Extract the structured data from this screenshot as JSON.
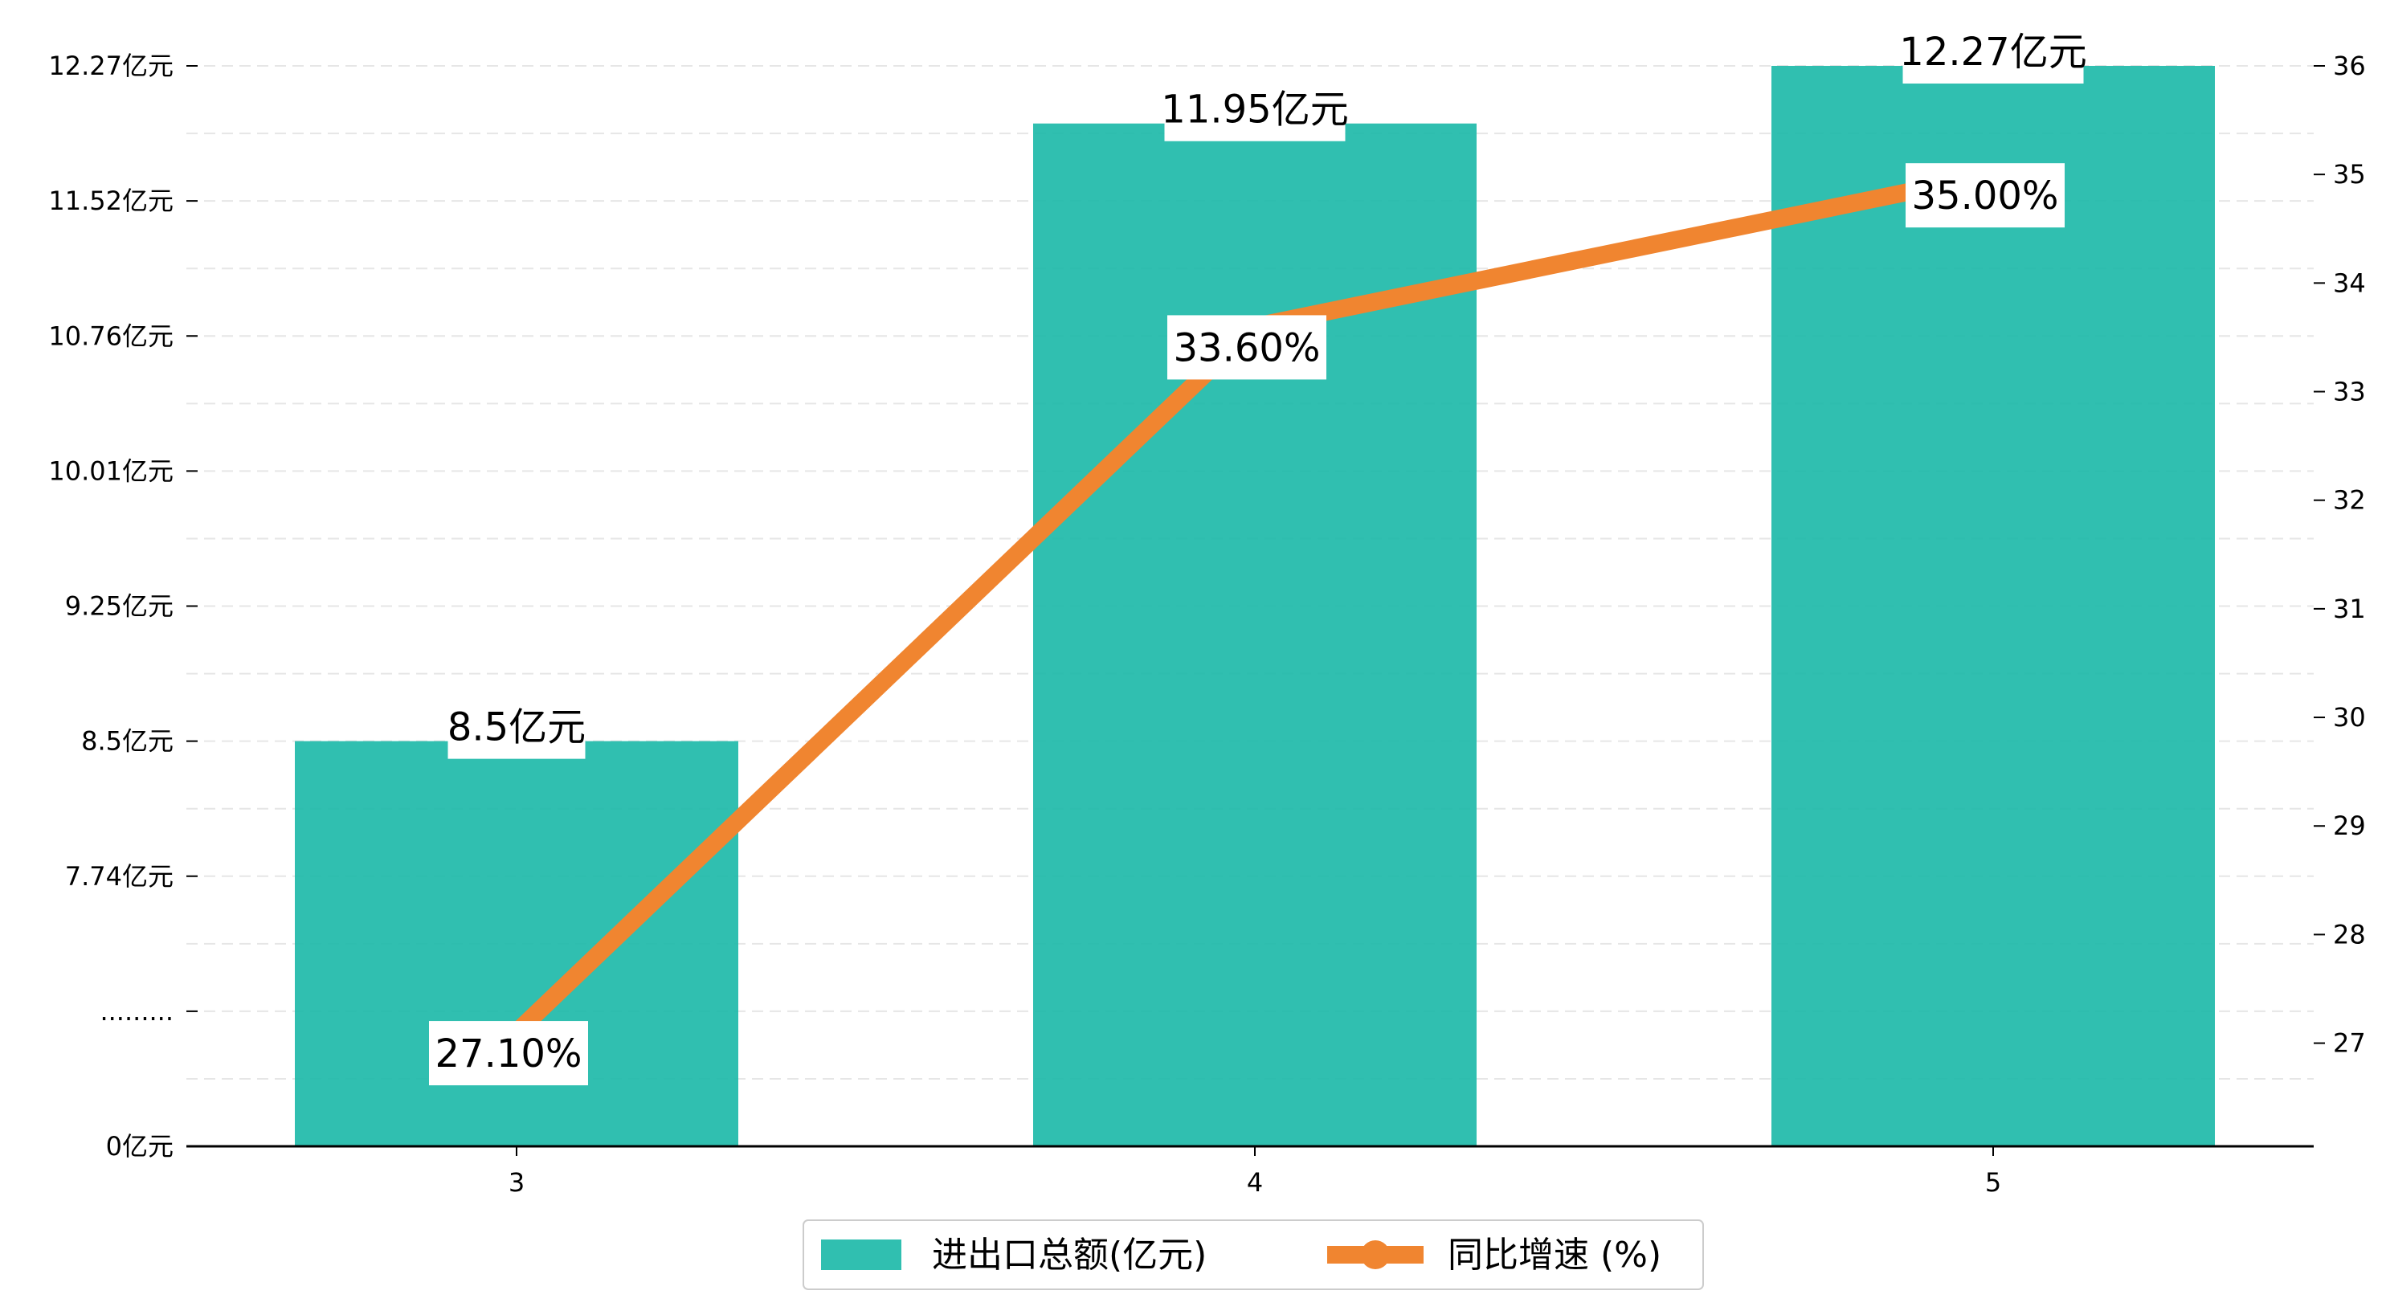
{
  "chart_data": {
    "type": "bar",
    "categories": [
      "3",
      "4",
      "5"
    ],
    "series": [
      {
        "name": "进出口总额(亿元)",
        "type": "bar",
        "axis": "left",
        "values": [
          8.5,
          11.95,
          12.27
        ],
        "value_labels": [
          "8.5亿元",
          "11.95亿元",
          "12.27亿元"
        ],
        "color": "#1AB8A7"
      },
      {
        "name": "同比增速 (%)",
        "type": "line",
        "axis": "right",
        "values": [
          27.1,
          33.6,
          35.0
        ],
        "value_labels": [
          "27.10%",
          "33.60%",
          "35.00%"
        ],
        "color": "#F08530"
      }
    ],
    "y_left": {
      "ticks": [
        {
          "pos": 0,
          "label": "0亿元"
        },
        {
          "pos": 1,
          "label": "........."
        },
        {
          "pos": 2,
          "label": "7.74亿元"
        },
        {
          "pos": 3,
          "label": "8.5亿元"
        },
        {
          "pos": 4,
          "label": "9.25亿元"
        },
        {
          "pos": 5,
          "label": "10.01亿元"
        },
        {
          "pos": 6,
          "label": "10.76亿元"
        },
        {
          "pos": 7,
          "label": "11.52亿元"
        },
        {
          "pos": 8,
          "label": "12.27亿元"
        }
      ],
      "note": "broken axis: evenly spaced ticks; values interpolated between labeled ticks"
    },
    "y_right": {
      "ticks": [
        27,
        28,
        29,
        30,
        31,
        32,
        33,
        34,
        35,
        36
      ],
      "ylim": [
        26.05,
        36
      ]
    },
    "grid": "horizontal dashed",
    "legend_position": "bottom-center"
  }
}
